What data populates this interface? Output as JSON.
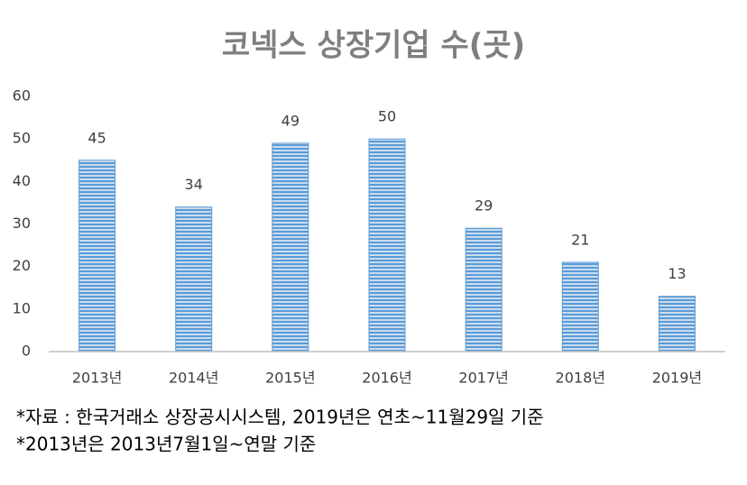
{
  "chart_data": {
    "type": "bar",
    "title": "코넥스 상장기업 수(곳)",
    "categories": [
      "2013년",
      "2014년",
      "2015년",
      "2016년",
      "2017년",
      "2018년",
      "2019년"
    ],
    "values": [
      45,
      34,
      49,
      50,
      29,
      21,
      13
    ],
    "color": "#5b9bd5",
    "ylim": [
      0,
      60
    ],
    "yticks": [
      0,
      10,
      20,
      30,
      40,
      50,
      60
    ],
    "grid": false,
    "notes": [
      "*자료 : 한국거래소 상장공시시스템, 2019년은 연초~11월29일 기준",
      "*2013년은 2013년7월1일~연말 기준"
    ]
  }
}
